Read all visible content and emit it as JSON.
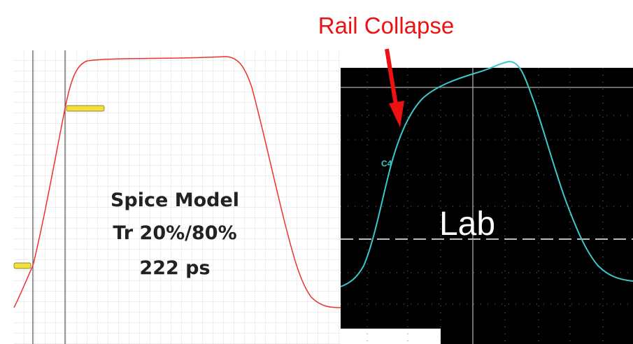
{
  "annotation": "Rail Collapse",
  "spice_panel": {
    "lines": [
      "Spice Model",
      "Tr 20%/80%",
      "222 ps"
    ]
  },
  "lab_panel": {
    "label": "Lab",
    "channel": "C4"
  }
}
